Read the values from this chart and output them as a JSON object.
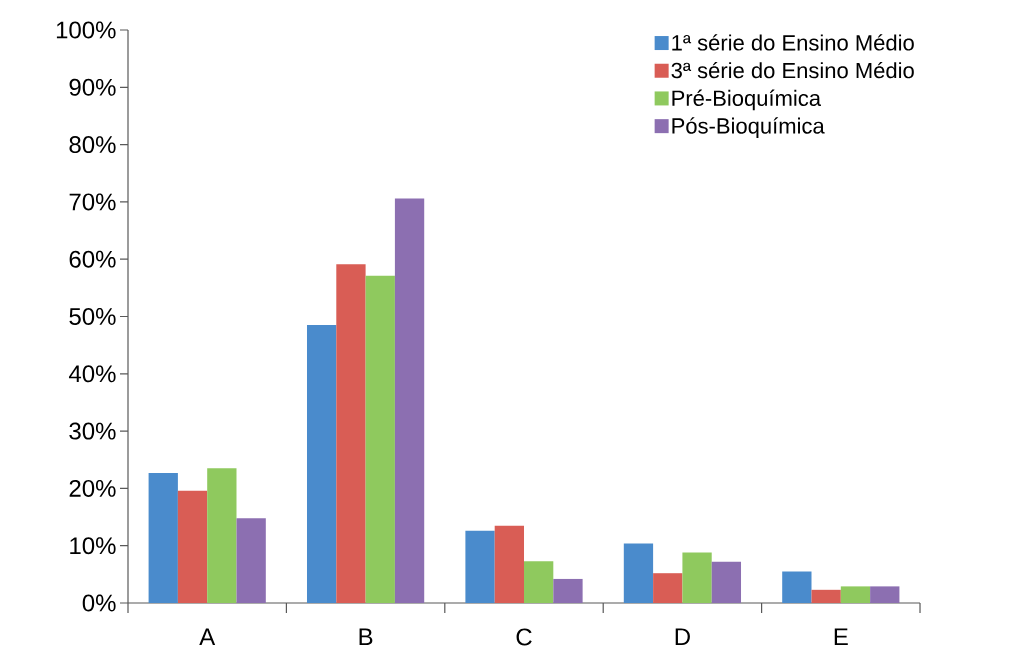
{
  "chart_data": {
    "type": "bar",
    "categories": [
      "A",
      "B",
      "C",
      "D",
      "E"
    ],
    "series": [
      {
        "name": "1ª série do Ensino Médio",
        "color": "#4a8bcc",
        "values": [
          22.7,
          48.5,
          12.6,
          10.4,
          5.5
        ]
      },
      {
        "name": "3ª série do Ensino Médio",
        "color": "#d95d55",
        "values": [
          19.6,
          59.1,
          13.5,
          5.2,
          2.3
        ]
      },
      {
        "name": "Pré-Bioquímica",
        "color": "#8fc95e",
        "values": [
          23.5,
          57.1,
          7.3,
          8.8,
          2.9
        ]
      },
      {
        "name": "Pós-Bioquímica",
        "color": "#8c6fb1",
        "values": [
          14.8,
          70.6,
          4.2,
          7.2,
          2.9
        ]
      }
    ],
    "ylim": [
      0,
      100
    ],
    "yticks": [
      {
        "value": 0,
        "label": "0%"
      },
      {
        "value": 10,
        "label": "10%"
      },
      {
        "value": 20,
        "label": "20%"
      },
      {
        "value": 30,
        "label": "30%"
      },
      {
        "value": 40,
        "label": "40%"
      },
      {
        "value": 50,
        "label": "50%"
      },
      {
        "value": 60,
        "label": "60%"
      },
      {
        "value": 70,
        "label": "70%"
      },
      {
        "value": 80,
        "label": "80%"
      },
      {
        "value": 90,
        "label": "90%"
      },
      {
        "value": 100,
        "label": "100%"
      }
    ],
    "legend": "top right"
  }
}
